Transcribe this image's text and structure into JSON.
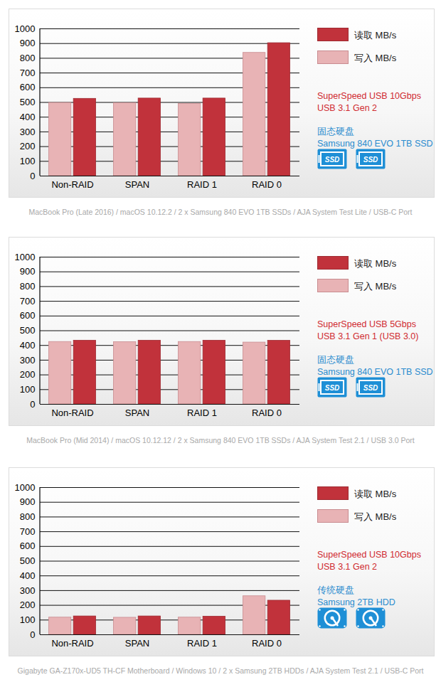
{
  "chart_data": [
    {
      "type": "bar",
      "categories": [
        "Non-RAID",
        "SPAN",
        "RAID 1",
        "RAID 0"
      ],
      "series": [
        {
          "name": "写入 MB/s",
          "color": "#e8b3b5",
          "values": [
            497,
            495,
            490,
            837
          ]
        },
        {
          "name": "读取 MB/s",
          "color": "#c1323b",
          "values": [
            525,
            527,
            527,
            903
          ]
        }
      ],
      "ylim": [
        0,
        1000
      ],
      "yticks": [
        0,
        100,
        200,
        300,
        400,
        500,
        600,
        700,
        800,
        900,
        1000
      ],
      "grid": true,
      "legend": "right",
      "interface": [
        "SuperSpeed USB 10Gbps",
        "USB 3.1 Gen 2"
      ],
      "drive": [
        "固态硬盘",
        "Samsung 840 EVO 1TB SSD"
      ],
      "icon_labels": [
        "SSD",
        "SSD"
      ],
      "caption": "MacBook Pro (Late 2016) / macOS 10.12.2 / 2 x Samsung 840 EVO 1TB SSDs / AJA System Test Lite / USB-C Port"
    },
    {
      "type": "bar",
      "categories": [
        "Non-RAID",
        "SPAN",
        "RAID 1",
        "RAID 0"
      ],
      "series": [
        {
          "name": "写入 MB/s",
          "color": "#e8b3b5",
          "values": [
            424,
            423,
            424,
            420
          ]
        },
        {
          "name": "读取 MB/s",
          "color": "#c1323b",
          "values": [
            433,
            433,
            433,
            432
          ]
        }
      ],
      "ylim": [
        0,
        1000
      ],
      "yticks": [
        0,
        100,
        200,
        300,
        400,
        500,
        600,
        700,
        800,
        900,
        1000
      ],
      "grid": true,
      "legend": "right",
      "interface": [
        "SuperSpeed USB 5Gbps",
        "USB 3.1 Gen 1 (USB 3.0)"
      ],
      "drive": [
        "固态硬盘",
        "Samsung 840 EVO 1TB SSD"
      ],
      "icon_labels": [
        "SSD",
        "SSD"
      ],
      "caption": "MacBook Pro (Mid 2014) / macOS 10.12.12 / 2 x Samsung 840 EVO 1TB SSDs / AJA System Test 2.1 / USB 3.0 Port"
    },
    {
      "type": "bar",
      "categories": [
        "Non-RAID",
        "SPAN",
        "RAID 1",
        "RAID 0"
      ],
      "series": [
        {
          "name": "写入 MB/s",
          "color": "#e8b3b5",
          "values": [
            117,
            116,
            117,
            262
          ]
        },
        {
          "name": "读取 MB/s",
          "color": "#c1323b",
          "values": [
            125,
            125,
            123,
            232
          ]
        }
      ],
      "ylim": [
        0,
        1000
      ],
      "yticks": [
        0,
        100,
        200,
        300,
        400,
        500,
        600,
        700,
        800,
        900,
        1000
      ],
      "grid": true,
      "legend": "right",
      "interface": [
        "SuperSpeed USB 10Gbps",
        "USB 3.1 Gen 2"
      ],
      "drive": [
        "传统硬盘",
        "Samsung 2TB HDD"
      ],
      "icon_labels": [
        null,
        null
      ],
      "caption": "Gigabyte GA-Z170x-UD5 TH-CF Motherboard / Windows 10 / 2 x Samsung 2TB HDDs / AJA System Test 2.1 / USB-C Port"
    }
  ]
}
